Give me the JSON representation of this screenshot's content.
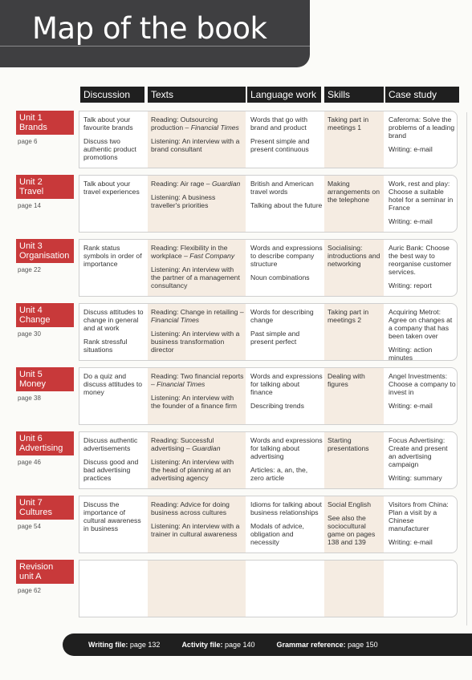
{
  "title": "Map of the book",
  "columns": [
    "Discussion",
    "Texts",
    "Language work",
    "Skills",
    "Case study"
  ],
  "units": [
    {
      "tab": [
        "Unit 1",
        "Brands"
      ],
      "page": "page 6",
      "discussion": [
        "Talk about your favourite brands",
        "Discuss two authentic product promotions"
      ],
      "texts": [
        {
          "label": "Reading: Outsourcing production –",
          "source": "Financial Times"
        },
        {
          "label": "Listening: An interview with a brand consultant",
          "source": ""
        }
      ],
      "language": [
        "Words that go with brand and product",
        "Present simple and present continuous"
      ],
      "skills": [
        "Taking part in meetings 1"
      ],
      "case": [
        "Caferoma: Solve the problems of a leading brand",
        "Writing: e-mail"
      ]
    },
    {
      "tab": [
        "Unit 2",
        "Travel"
      ],
      "page": "page 14",
      "discussion": [
        "Talk about your travel experiences"
      ],
      "texts": [
        {
          "label": "Reading: Air rage –",
          "source": "Guardian"
        },
        {
          "label": "Listening: A business traveller's priorities",
          "source": ""
        }
      ],
      "language": [
        "British and American travel words",
        "Talking about the future"
      ],
      "skills": [
        "Making arrangements on the telephone"
      ],
      "case": [
        "Work, rest and play: Choose a suitable hotel for a seminar in France",
        "Writing: e-mail"
      ]
    },
    {
      "tab": [
        "Unit 3",
        "Organisation"
      ],
      "page": "page 22",
      "discussion": [
        "Rank status symbols in order of importance"
      ],
      "texts": [
        {
          "label": "Reading: Flexibility in the workplace –",
          "source": "Fast Company"
        },
        {
          "label": "Listening: An interview with the partner of a management consultancy",
          "source": ""
        }
      ],
      "language": [
        "Words and expressions to describe company structure",
        "Noun combinations"
      ],
      "skills": [
        "Socialising: introductions and networking"
      ],
      "case": [
        "Auric Bank: Choose the best way to reorganise customer services.",
        "Writing: report"
      ]
    },
    {
      "tab": [
        "Unit 4",
        "Change"
      ],
      "page": "page 30",
      "discussion": [
        "Discuss attitudes to change in general and at work",
        "Rank stressful situations"
      ],
      "texts": [
        {
          "label": "Reading: Change in retailing –",
          "source": "Financial Times"
        },
        {
          "label": "Listening: An interview with a business transformation director",
          "source": ""
        }
      ],
      "language": [
        "Words for describing change",
        "Past simple and present perfect"
      ],
      "skills": [
        "Taking part in meetings 2"
      ],
      "case": [
        "Acquiring Metrot: Agree on changes at a company that has been taken over",
        "Writing: action minutes"
      ]
    },
    {
      "tab": [
        "Unit 5",
        "Money"
      ],
      "page": "page 38",
      "discussion": [
        "Do a quiz and discuss attitudes to money"
      ],
      "texts": [
        {
          "label": "Reading: Two financial reports –",
          "source": "Financial Times"
        },
        {
          "label": "Listening: An interview with the founder of a finance firm",
          "source": ""
        }
      ],
      "language": [
        "Words and expressions for talking about finance",
        "Describing trends"
      ],
      "skills": [
        "Dealing with figures"
      ],
      "case": [
        "Angel Investments: Choose a company to invest in",
        "Writing: e-mail"
      ]
    },
    {
      "tab": [
        "Unit 6",
        "Advertising"
      ],
      "page": "page 46",
      "discussion": [
        "Discuss authentic advertisements",
        "Discuss good and bad advertising practices"
      ],
      "texts": [
        {
          "label": "Reading: Successful advertising –",
          "source": "Guardian"
        },
        {
          "label": "Listening: An interview with the head of planning at an advertising agency",
          "source": ""
        }
      ],
      "language": [
        "Words and expressions for talking about advertising",
        "Articles: a, an, the, zero article"
      ],
      "skills": [
        "Starting presentations"
      ],
      "case": [
        "Focus Advertising: Create and present an advertising campaign",
        "Writing: summary"
      ]
    },
    {
      "tab": [
        "Unit 7",
        "Cultures"
      ],
      "page": "page 54",
      "discussion": [
        "Discuss the importance of cultural awareness in business"
      ],
      "texts": [
        {
          "label": "Reading: Advice for doing business across cultures",
          "source": ""
        },
        {
          "label": "Listening: An interview with a trainer in cultural awareness",
          "source": ""
        }
      ],
      "language": [
        "Idioms for talking about business relationships",
        "Modals of advice, obligation and necessity"
      ],
      "skills": [
        "Social English",
        "See also the sociocultural game on pages 138 and 139"
      ],
      "case": [
        "Visitors from China: Plan a visit by a Chinese manufacturer",
        "Writing: e-mail"
      ]
    },
    {
      "tab": [
        "Revision",
        "unit A"
      ],
      "page": "page 62",
      "discussion": [],
      "texts": [],
      "language": [],
      "skills": [],
      "case": []
    }
  ],
  "footer": {
    "writing_label": "Writing file:",
    "writing_page": "page 132",
    "activity_label": "Activity file:",
    "activity_page": "page 140",
    "grammar_label": "Grammar reference:",
    "grammar_page": "page 150"
  }
}
